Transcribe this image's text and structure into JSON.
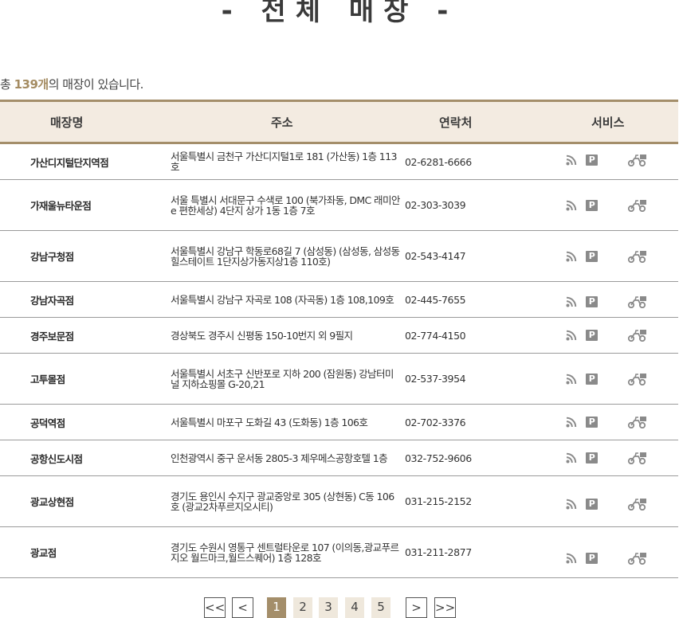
{
  "page_title": "- 전체 매장 -",
  "count": {
    "prefix": "총 ",
    "number": "139개",
    "suffix": "의 매장이 있습니다."
  },
  "table": {
    "headers": [
      "매장명",
      "주소",
      "연락처",
      "서비스"
    ],
    "rows": [
      {
        "name": "가산디지털단지역점",
        "address": "서울특별시 금천구 가산디지털1로 181 (가산동) 1층 113호",
        "phone": "02-6281-6666"
      },
      {
        "name": "가재울뉴타운점",
        "address": "서울 특별시 서대문구 수색로 100 (북가좌동, DMC 래미안e 편한세상) 4단지 상가 1동 1층 7호",
        "phone": "02-303-3039"
      },
      {
        "name": "강남구청점",
        "address": "서울특별시 강남구 학동로68길 7 (삼성동) (삼성동, 삼성동 힐스테이트 1단지상가동지상1층 110호)",
        "phone": "02-543-4147"
      },
      {
        "name": "강남자곡점",
        "address": "서울특별시 강남구 자곡로 108 (자곡동) 1층 108,109호",
        "phone": "02-445-7655"
      },
      {
        "name": "경주보문점",
        "address": "경상북도 경주시 신평동 150-10번지 외 9필지",
        "phone": "02-774-4150"
      },
      {
        "name": "고투몰점",
        "address": "서울특별시 서초구 신반포로 지하 200 (잠원동) 강남터미널 지하쇼핑몰 G-20,21",
        "phone": "02-537-3954"
      },
      {
        "name": "공덕역점",
        "address": "서울특별시 마포구 도화길 43 (도화동) 1층 106호",
        "phone": "02-702-3376"
      },
      {
        "name": "공항신도시점",
        "address": "인천광역시 중구 운서동 2805-3 제우메스공항호텔 1층",
        "phone": "032-752-9606"
      },
      {
        "name": "광교상현점",
        "address": "경기도 용인시 수지구 광교중앙로 305 (상현동) C동 106호 (광교2차푸르지오시티)",
        "phone": "031-215-2152"
      },
      {
        "name": "광교점",
        "address": "경기도 수원시 영통구 센트럴타운로 107 (이의동,광교푸르지오 월드마크,월드스퀘어) 1층 128호",
        "phone": "031-211-2877"
      }
    ],
    "service_icons": [
      "rss-icon",
      "parking-icon",
      "delivery-icon"
    ],
    "parking_label": "P"
  },
  "pagination": {
    "first": "<<",
    "prev": "<",
    "pages": [
      "1",
      "2",
      "3",
      "4",
      "5"
    ],
    "current": "1",
    "next": ">",
    "last": ">>"
  },
  "colors": {
    "accent": "#a48e6a",
    "header_bg": "#f3ebe1",
    "count_number": "#a58c62",
    "icon_gray": "#8a8a8a"
  }
}
